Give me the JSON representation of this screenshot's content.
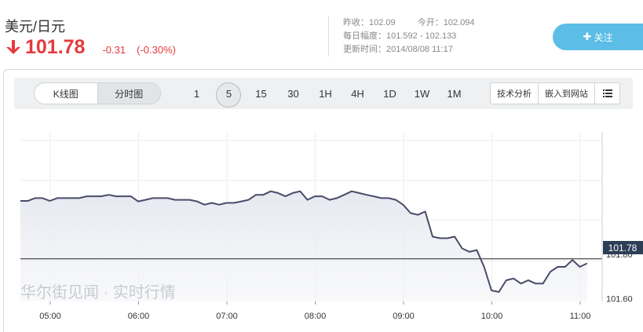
{
  "header": {
    "pair": "美元/日元",
    "price": "101.78",
    "change": "-0.31",
    "change_pct": "(-0.30%)",
    "direction_icon": "arrow-down-icon",
    "prev_close_label": "昨收：",
    "prev_close": "102.09",
    "open_label": "今开：",
    "open": "102.094",
    "range_label": "每日幅度：",
    "range": "101.592 - 102.133",
    "updated_label": "更新时间：",
    "updated": "2014/08/08 11:17",
    "follow_label": "关注",
    "colors": {
      "down": "#e5393e",
      "follow": "#5cbde7",
      "line": "#4a4a6a"
    }
  },
  "toolbar": {
    "chart_types": [
      {
        "label": "K线图",
        "active": false
      },
      {
        "label": "分时图",
        "active": true
      }
    ],
    "periods": [
      "1",
      "5",
      "15",
      "30",
      "1H",
      "4H",
      "1D",
      "1W",
      "1M"
    ],
    "active_period": "5",
    "tech_label": "技术分析",
    "embed_label": "嵌入到网站",
    "menu_icon": "list-icon"
  },
  "watermark": "华尔街见闻 · 实时行情",
  "chart_data": {
    "type": "line",
    "title": "",
    "xlabel": "",
    "ylabel": "",
    "x_ticks": [
      "05:00",
      "06:00",
      "07:00",
      "08:00",
      "09:00",
      "10:00",
      "11:00"
    ],
    "y_ticks": [
      101.8,
      101.6
    ],
    "ylim": [
      101.5871,
      102.3565
    ],
    "current_value": "101.78",
    "current_label": "101.78",
    "grid": true,
    "series": [
      {
        "values": [
          102.043,
          102.043,
          102.056,
          102.056,
          102.043,
          102.056,
          102.056,
          102.056,
          102.056,
          102.064,
          102.064,
          102.064,
          102.071,
          102.064,
          102.064,
          102.064,
          102.041,
          102.048,
          102.056,
          102.056,
          102.056,
          102.048,
          102.048,
          102.048,
          102.041,
          102.026,
          102.034,
          102.026,
          102.034,
          102.034,
          102.041,
          102.048,
          102.071,
          102.071,
          102.087,
          102.079,
          102.064,
          102.079,
          102.087,
          102.048,
          102.064,
          102.064,
          102.048,
          102.056,
          102.071,
          102.087,
          102.079,
          102.071,
          102.064,
          102.056,
          102.056,
          102.048,
          102.026,
          101.988,
          101.98,
          101.995,
          101.881,
          101.874,
          101.874,
          101.881,
          101.828,
          101.812,
          101.82,
          101.744,
          101.637,
          101.63,
          101.683,
          101.691,
          101.668,
          101.683,
          101.668,
          101.668,
          101.722,
          101.744,
          101.744,
          101.775,
          101.744,
          101.76
        ]
      }
    ]
  }
}
